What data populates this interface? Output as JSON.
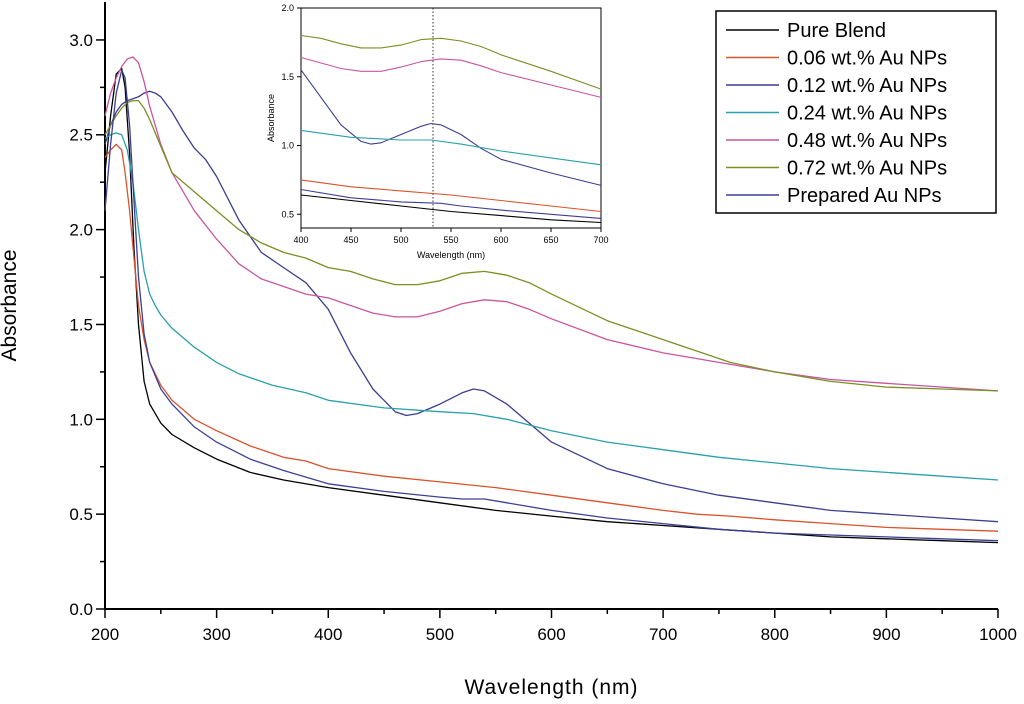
{
  "chart_data": [
    {
      "type": "line",
      "xlabel": "Wavelength (nm)",
      "ylabel": "Absorbance",
      "xlim": [
        200,
        1000
      ],
      "ylim": [
        0,
        3.2
      ],
      "xticks": [
        200,
        300,
        400,
        500,
        600,
        700,
        800,
        900,
        1000
      ],
      "xtick_labels": [
        "200",
        "300",
        "400",
        "500",
        "600",
        "700",
        "800",
        "900",
        "1000"
      ],
      "yticks": [
        0,
        0.5,
        1.0,
        1.5,
        2.0,
        2.5,
        3.0
      ],
      "ytick_labels": [
        "0.0",
        "0.5",
        "1.0",
        "1.5",
        "2.0",
        "2.5",
        "3.0"
      ],
      "grid": false,
      "legend_position": "top-right",
      "series": [
        {
          "name": "Pure Blend",
          "color": "#000000",
          "x": [
            200,
            205,
            210,
            215,
            218,
            222,
            226,
            230,
            235,
            240,
            250,
            260,
            280,
            300,
            330,
            360,
            400,
            450,
            500,
            550,
            600,
            650,
            700,
            750,
            800,
            850,
            900,
            950,
            1000
          ],
          "y": [
            2.3,
            2.6,
            2.82,
            2.85,
            2.75,
            2.4,
            1.9,
            1.5,
            1.2,
            1.08,
            0.98,
            0.92,
            0.85,
            0.79,
            0.72,
            0.68,
            0.64,
            0.6,
            0.56,
            0.52,
            0.49,
            0.46,
            0.44,
            0.42,
            0.4,
            0.38,
            0.37,
            0.36,
            0.35
          ]
        },
        {
          "name": "0.06 wt.% Au NPs",
          "color": "#d9532c",
          "x": [
            200,
            205,
            210,
            215,
            218,
            222,
            226,
            230,
            235,
            240,
            250,
            260,
            280,
            300,
            330,
            360,
            380,
            400,
            450,
            500,
            550,
            600,
            650,
            700,
            730,
            760,
            800,
            850,
            900,
            950,
            1000
          ],
          "y": [
            2.38,
            2.42,
            2.45,
            2.42,
            2.3,
            2.1,
            1.85,
            1.6,
            1.42,
            1.3,
            1.18,
            1.1,
            1.0,
            0.94,
            0.86,
            0.8,
            0.78,
            0.74,
            0.7,
            0.67,
            0.64,
            0.6,
            0.56,
            0.52,
            0.5,
            0.49,
            0.47,
            0.45,
            0.43,
            0.42,
            0.41
          ]
        },
        {
          "name": "0.12 wt.% Au NPs",
          "color": "#3b3e8f",
          "x": [
            200,
            205,
            210,
            215,
            220,
            225,
            230,
            235,
            240,
            245,
            250,
            260,
            270,
            280,
            290,
            300,
            320,
            340,
            360,
            380,
            400,
            420,
            440,
            460,
            470,
            480,
            500,
            520,
            530,
            540,
            560,
            580,
            600,
            650,
            700,
            750,
            800,
            850,
            900,
            950,
            1000
          ],
          "y": [
            2.45,
            2.55,
            2.62,
            2.66,
            2.68,
            2.69,
            2.7,
            2.72,
            2.73,
            2.72,
            2.7,
            2.62,
            2.52,
            2.43,
            2.37,
            2.28,
            2.05,
            1.88,
            1.8,
            1.72,
            1.58,
            1.35,
            1.16,
            1.04,
            1.02,
            1.03,
            1.08,
            1.14,
            1.16,
            1.15,
            1.08,
            0.98,
            0.88,
            0.74,
            0.66,
            0.6,
            0.56,
            0.52,
            0.5,
            0.48,
            0.46
          ]
        },
        {
          "name": "0.24 wt.% Au NPs",
          "color": "#2a9fad",
          "x": [
            200,
            205,
            210,
            215,
            220,
            225,
            230,
            235,
            240,
            245,
            250,
            260,
            280,
            300,
            320,
            350,
            380,
            400,
            450,
            500,
            530,
            560,
            600,
            650,
            700,
            750,
            800,
            850,
            900,
            950,
            1000
          ],
          "y": [
            2.48,
            2.5,
            2.51,
            2.5,
            2.42,
            2.25,
            2.0,
            1.78,
            1.66,
            1.6,
            1.55,
            1.48,
            1.38,
            1.3,
            1.24,
            1.18,
            1.14,
            1.1,
            1.06,
            1.04,
            1.03,
            1.0,
            0.94,
            0.88,
            0.84,
            0.8,
            0.77,
            0.74,
            0.72,
            0.7,
            0.68
          ]
        },
        {
          "name": "0.48 wt.% Au NPs",
          "color": "#c9559f",
          "x": [
            200,
            205,
            210,
            215,
            220,
            225,
            230,
            235,
            240,
            250,
            260,
            280,
            300,
            320,
            340,
            360,
            380,
            400,
            420,
            440,
            460,
            480,
            500,
            520,
            540,
            560,
            580,
            600,
            650,
            700,
            750,
            800,
            850,
            900,
            950,
            1000
          ],
          "y": [
            2.6,
            2.72,
            2.8,
            2.86,
            2.9,
            2.91,
            2.88,
            2.78,
            2.65,
            2.45,
            2.3,
            2.1,
            1.95,
            1.82,
            1.74,
            1.7,
            1.66,
            1.64,
            1.6,
            1.56,
            1.54,
            1.54,
            1.57,
            1.61,
            1.63,
            1.62,
            1.58,
            1.53,
            1.42,
            1.35,
            1.3,
            1.25,
            1.21,
            1.19,
            1.17,
            1.15
          ]
        },
        {
          "name": "0.72 wt.% Au NPs",
          "color": "#7c8f23",
          "x": [
            200,
            205,
            210,
            215,
            220,
            225,
            230,
            235,
            240,
            250,
            260,
            280,
            300,
            320,
            340,
            360,
            380,
            400,
            420,
            440,
            460,
            480,
            500,
            520,
            540,
            560,
            580,
            600,
            650,
            700,
            720,
            740,
            760,
            800,
            850,
            900,
            950,
            1000
          ],
          "y": [
            2.5,
            2.55,
            2.6,
            2.64,
            2.67,
            2.68,
            2.68,
            2.64,
            2.58,
            2.44,
            2.3,
            2.2,
            2.1,
            2.0,
            1.93,
            1.88,
            1.85,
            1.8,
            1.78,
            1.74,
            1.71,
            1.71,
            1.73,
            1.77,
            1.78,
            1.76,
            1.72,
            1.66,
            1.52,
            1.42,
            1.38,
            1.34,
            1.3,
            1.25,
            1.2,
            1.17,
            1.16,
            1.15
          ]
        },
        {
          "name": "Prepared Au NPs",
          "color": "#3c3f96",
          "x": [
            200,
            205,
            210,
            215,
            218,
            222,
            226,
            230,
            235,
            240,
            250,
            260,
            280,
            300,
            330,
            360,
            400,
            450,
            500,
            520,
            540,
            560,
            600,
            650,
            700,
            750,
            800,
            850,
            900,
            950,
            1000
          ],
          "y": [
            2.1,
            2.45,
            2.72,
            2.84,
            2.8,
            2.55,
            2.15,
            1.75,
            1.45,
            1.3,
            1.16,
            1.08,
            0.96,
            0.88,
            0.79,
            0.73,
            0.66,
            0.62,
            0.59,
            0.58,
            0.58,
            0.56,
            0.52,
            0.48,
            0.45,
            0.42,
            0.4,
            0.39,
            0.38,
            0.37,
            0.36
          ]
        }
      ]
    },
    {
      "type": "line",
      "xlabel": "Wavelength (nm)",
      "ylabel": "Absorbance",
      "xlim": [
        400,
        700
      ],
      "ylim": [
        0.4,
        2.0
      ],
      "xticks": [
        400,
        450,
        500,
        550,
        600,
        650,
        700
      ],
      "xtick_labels": [
        "400",
        "450",
        "500",
        "550",
        "600",
        "650",
        "700"
      ],
      "yticks": [
        0.5,
        1.0,
        1.5,
        2.0
      ],
      "ytick_labels": [
        "0.5",
        "1.0",
        "1.5",
        "2.0"
      ],
      "grid": false,
      "reference_line_x": 532,
      "series": [
        {
          "name": "Pure Blend",
          "color": "#000000",
          "x": [
            400,
            450,
            500,
            550,
            600,
            650,
            700
          ],
          "y": [
            0.64,
            0.6,
            0.56,
            0.52,
            0.49,
            0.46,
            0.44
          ]
        },
        {
          "name": "0.06 wt.% Au NPs",
          "color": "#d9532c",
          "x": [
            400,
            450,
            500,
            550,
            600,
            650,
            700
          ],
          "y": [
            0.75,
            0.7,
            0.67,
            0.64,
            0.6,
            0.56,
            0.52
          ]
        },
        {
          "name": "0.12 wt.% Au NPs",
          "color": "#3b3e8f",
          "x": [
            400,
            420,
            440,
            460,
            470,
            480,
            500,
            520,
            530,
            540,
            560,
            580,
            600,
            650,
            700
          ],
          "y": [
            1.55,
            1.35,
            1.15,
            1.03,
            1.01,
            1.02,
            1.08,
            1.14,
            1.16,
            1.15,
            1.08,
            0.98,
            0.9,
            0.8,
            0.71
          ]
        },
        {
          "name": "0.24 wt.% Au NPs",
          "color": "#2a9fad",
          "x": [
            400,
            450,
            500,
            530,
            560,
            600,
            650,
            700
          ],
          "y": [
            1.11,
            1.06,
            1.04,
            1.04,
            1.01,
            0.96,
            0.91,
            0.86
          ]
        },
        {
          "name": "0.48 wt.% Au NPs",
          "color": "#c9559f",
          "x": [
            400,
            420,
            440,
            460,
            480,
            500,
            520,
            540,
            560,
            580,
            600,
            650,
            700
          ],
          "y": [
            1.64,
            1.6,
            1.56,
            1.54,
            1.54,
            1.57,
            1.61,
            1.63,
            1.62,
            1.58,
            1.53,
            1.44,
            1.35
          ]
        },
        {
          "name": "0.72 wt.% Au NPs",
          "color": "#7c8f23",
          "x": [
            400,
            420,
            440,
            460,
            480,
            500,
            520,
            540,
            560,
            580,
            600,
            650,
            700
          ],
          "y": [
            1.8,
            1.78,
            1.74,
            1.71,
            1.71,
            1.73,
            1.77,
            1.78,
            1.76,
            1.72,
            1.66,
            1.54,
            1.41
          ]
        },
        {
          "name": "Prepared Au NPs",
          "color": "#3c3f96",
          "x": [
            400,
            450,
            500,
            540,
            560,
            600,
            650,
            700
          ],
          "y": [
            0.68,
            0.62,
            0.59,
            0.58,
            0.56,
            0.53,
            0.5,
            0.47
          ]
        }
      ]
    }
  ]
}
